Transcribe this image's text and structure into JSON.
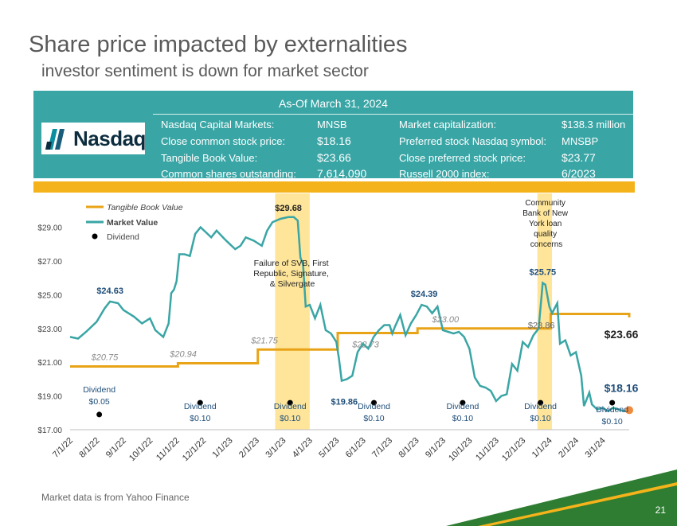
{
  "title": "Share price impacted by externalities",
  "subtitle": "investor sentiment is down for market sector",
  "info_panel": {
    "as_of": "As-Of March 31, 2024",
    "logo_text": "Nasdaq",
    "left_items": [
      {
        "label": "Nasdaq Capital Markets:",
        "value": "MNSB"
      },
      {
        "label": "Close common stock price:",
        "value": "$18.16"
      },
      {
        "label": "Tangible Book Value:",
        "value": "$23.66"
      },
      {
        "label": "Common shares outstanding:",
        "value": "7,614,090"
      }
    ],
    "right_items": [
      {
        "label": "Market capitalization:",
        "value": "$138.3 million"
      },
      {
        "label": "Preferred stock Nasdaq symbol:",
        "value": "MNSBP"
      },
      {
        "label": "Close preferred stock price:",
        "value": "$23.77"
      },
      {
        "label": "Russell 2000 index:",
        "value": "6/2023"
      }
    ]
  },
  "footer": {
    "source": "Market data is from Yahoo Finance",
    "page_number": "21"
  },
  "colors": {
    "teal": "#3aa5a5",
    "tbv": "#e8a317",
    "band": "#ffe59a",
    "gold": "#f5b31b",
    "green": "#2e7d32",
    "dot": "#f08a3c"
  },
  "chart_data": {
    "type": "line",
    "ylim": [
      17,
      30.3
    ],
    "xlim": [
      0,
      21
    ],
    "yticks": [
      17,
      19,
      21,
      23,
      25,
      27,
      29
    ],
    "ytick_labels": [
      "$17.00",
      "$19.00",
      "$21.00",
      "$23.00",
      "$25.00",
      "$27.00",
      "$29.00"
    ],
    "xtick_labels": [
      "7/1/22",
      "8/1/22",
      "9/1/22",
      "10/1/22",
      "11/1/22",
      "12/1/22",
      "1/1/23",
      "2/1/23",
      "3/1/23",
      "4/1/23",
      "5/1/23",
      "6/1/23",
      "7/1/23",
      "8/1/23",
      "9/1/23",
      "10/1/23",
      "11/1/23",
      "12/1/23",
      "1/1/24",
      "2/1/24",
      "3/1/24"
    ],
    "legend": [
      "Tangible Book Value",
      "Market Value",
      "Dividend"
    ],
    "shaded_periods": [
      [
        7.7,
        9.0
      ],
      [
        17.55,
        18.1
      ]
    ],
    "series": [
      {
        "name": "Market Value",
        "points": [
          [
            0,
            22.5
          ],
          [
            0.3,
            22.4
          ],
          [
            0.6,
            22.8
          ],
          [
            1,
            23.4
          ],
          [
            1.3,
            24.2
          ],
          [
            1.5,
            24.6
          ],
          [
            1.8,
            24.5
          ],
          [
            2,
            24.1
          ],
          [
            2.4,
            23.7
          ],
          [
            2.7,
            23.3
          ],
          [
            3,
            23.6
          ],
          [
            3.2,
            22.9
          ],
          [
            3.5,
            22.5
          ],
          [
            3.7,
            23.3
          ],
          [
            3.8,
            25.1
          ],
          [
            3.9,
            25.3
          ],
          [
            4,
            25.8
          ],
          [
            4.1,
            27.4
          ],
          [
            4.3,
            27.4
          ],
          [
            4.5,
            27.3
          ],
          [
            4.7,
            28.6
          ],
          [
            4.9,
            29.0
          ],
          [
            5.1,
            28.7
          ],
          [
            5.3,
            28.4
          ],
          [
            5.5,
            28.8
          ],
          [
            5.8,
            28.3
          ],
          [
            6,
            28.0
          ],
          [
            6.2,
            27.7
          ],
          [
            6.4,
            27.9
          ],
          [
            6.6,
            28.4
          ],
          [
            6.9,
            28.2
          ],
          [
            7.2,
            27.9
          ],
          [
            7.4,
            28.8
          ],
          [
            7.6,
            29.3
          ],
          [
            7.9,
            29.5
          ],
          [
            8.2,
            29.6
          ],
          [
            8.4,
            29.6
          ],
          [
            8.55,
            29.4
          ],
          [
            8.65,
            27.2
          ],
          [
            8.75,
            26.8
          ],
          [
            8.85,
            24.3
          ],
          [
            9.0,
            24.4
          ],
          [
            9.2,
            23.6
          ],
          [
            9.4,
            24.4
          ],
          [
            9.6,
            22.9
          ],
          [
            9.8,
            22.7
          ],
          [
            10.0,
            22.2
          ],
          [
            10.1,
            21.2
          ],
          [
            10.2,
            19.9
          ],
          [
            10.4,
            20.0
          ],
          [
            10.6,
            20.2
          ],
          [
            10.8,
            21.6
          ],
          [
            11.0,
            22.1
          ],
          [
            11.2,
            21.8
          ],
          [
            11.4,
            22.5
          ],
          [
            11.6,
            22.9
          ],
          [
            11.8,
            23.2
          ],
          [
            12.0,
            23.2
          ],
          [
            12.1,
            22.7
          ],
          [
            12.2,
            23.1
          ],
          [
            12.4,
            23.8
          ],
          [
            12.6,
            22.6
          ],
          [
            12.8,
            23.3
          ],
          [
            13.0,
            23.8
          ],
          [
            13.2,
            24.4
          ],
          [
            13.4,
            24.3
          ],
          [
            13.6,
            23.9
          ],
          [
            13.8,
            24.3
          ],
          [
            14.0,
            22.9
          ],
          [
            14.2,
            22.8
          ],
          [
            14.4,
            22.7
          ],
          [
            14.6,
            22.8
          ],
          [
            14.8,
            22.5
          ],
          [
            15.0,
            21.8
          ],
          [
            15.2,
            20.1
          ],
          [
            15.4,
            19.6
          ],
          [
            15.6,
            19.5
          ],
          [
            15.8,
            19.3
          ],
          [
            16.0,
            18.7
          ],
          [
            16.2,
            19.0
          ],
          [
            16.4,
            19.1
          ],
          [
            16.6,
            20.9
          ],
          [
            16.8,
            20.5
          ],
          [
            17.0,
            22.2
          ],
          [
            17.2,
            21.9
          ],
          [
            17.4,
            22.6
          ],
          [
            17.6,
            23.0
          ],
          [
            17.75,
            25.7
          ],
          [
            17.85,
            25.6
          ],
          [
            18.0,
            24.3
          ],
          [
            18.1,
            23.9
          ],
          [
            18.3,
            24.5
          ],
          [
            18.4,
            22.1
          ],
          [
            18.6,
            22.3
          ],
          [
            18.8,
            21.4
          ],
          [
            19.0,
            21.6
          ],
          [
            19.2,
            20.2
          ],
          [
            19.3,
            18.4
          ],
          [
            19.5,
            19.2
          ],
          [
            19.6,
            18.5
          ],
          [
            19.8,
            18.2
          ],
          [
            20.0,
            18.3
          ],
          [
            20.2,
            18.1
          ],
          [
            20.4,
            18.3
          ],
          [
            20.6,
            18.2
          ],
          [
            20.8,
            18.1
          ],
          [
            21.0,
            18.16
          ]
        ]
      },
      {
        "name": "Tangible Book Value",
        "points": [
          [
            0,
            20.75
          ],
          [
            1.05,
            20.75
          ],
          [
            1.05,
            20.94
          ],
          [
            2.05,
            20.94
          ],
          [
            2.05,
            21.75
          ],
          [
            3.05,
            21.75
          ],
          [
            3.05,
            22.73
          ],
          [
            4.05,
            22.73
          ],
          [
            4.05,
            23.0
          ],
          [
            5.05,
            23.0
          ],
          [
            5.05,
            23.86
          ],
          [
            7.05,
            23.86
          ],
          [
            7.05,
            23.66
          ]
        ],
        "x_mode": "step_segments"
      },
      {
        "name": "Dividend",
        "points": [
          [
            0.2,
            17.9
          ],
          [
            1.35,
            18.6
          ],
          [
            2.35,
            18.6
          ],
          [
            3.35,
            18.6
          ],
          [
            4.5,
            18.6
          ],
          [
            5.4,
            18.6
          ],
          [
            6.35,
            18.6
          ]
        ]
      }
    ],
    "annotations": [
      {
        "text": "$24.63",
        "x": 1.5,
        "y": 24.6
      },
      {
        "text": "$29.68",
        "x": 8.2,
        "y": 29.6
      },
      {
        "text": "$19.86",
        "x": 10.3,
        "y": 19.9
      },
      {
        "text": "$24.39",
        "x": 13.3,
        "y": 24.4
      },
      {
        "text": "$25.75",
        "x": 17.75,
        "y": 25.7
      },
      {
        "text": "$18.16",
        "x": 21.0,
        "y": 18.16
      },
      {
        "text": "$23.66",
        "x": 21.0,
        "y": 23.66
      },
      {
        "text": "$20.75",
        "x": 0.5,
        "y": 20.75
      },
      {
        "text": "$20.94",
        "x": 1.5,
        "y": 20.94
      },
      {
        "text": "$21.75",
        "x": 2.5,
        "y": 21.75
      },
      {
        "text": "$22.73",
        "x": 3.5,
        "y": 22.73
      },
      {
        "text": "$23.00",
        "x": 4.5,
        "y": 23.0
      },
      {
        "text": "$23.86",
        "x": 6.0,
        "y": 23.86
      }
    ],
    "event_notes": [
      "Failure of SVB, First",
      "Republic, Signature,",
      "& Silvergate"
    ],
    "event_notes_2": [
      "Community",
      "Bank of New",
      "York loan",
      "quality",
      "concerns"
    ],
    "dividend_labels": [
      {
        "line1": "Dividend",
        "line2": "$0.05"
      },
      {
        "line1": "Dividend",
        "line2": "$0.10"
      },
      {
        "line1": "Dividend",
        "line2": "$0.10"
      },
      {
        "line1": "Dividend",
        "line2": "$0.10"
      },
      {
        "line1": "Dividend",
        "line2": "$0.10"
      },
      {
        "line1": "Dividend",
        "line2": "$0.10"
      },
      {
        "line1": "Dividend",
        "line2": "$0.10"
      }
    ]
  }
}
